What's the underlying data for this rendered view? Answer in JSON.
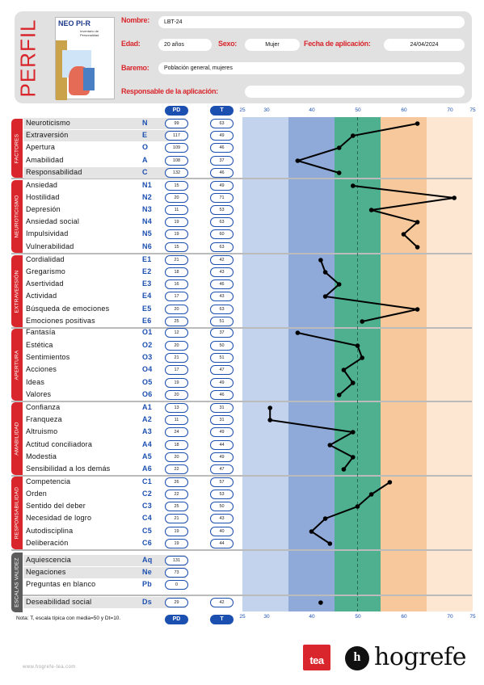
{
  "header": {
    "perfil": "PERFIL",
    "cover_title": "NEO PI-R",
    "cover_subtitle": "Inventario de Personalidad",
    "nombre_label": "Nombre:",
    "nombre_value": "LBT-24",
    "edad_label": "Edad:",
    "edad_value": "20 años",
    "sexo_label": "Sexo:",
    "sexo_value": "Mujer",
    "fecha_label": "Fecha de aplicación:",
    "fecha_value": "24/04/2024",
    "baremo_label": "Baremo:",
    "baremo_value": "Población general, mujeres",
    "responsable_label": "Responsable de la aplicación:",
    "responsable_value": ""
  },
  "col_headers": {
    "pd": "PD",
    "t": "T"
  },
  "axis_ticks": [
    "25",
    "30",
    "40",
    "50",
    "60",
    "70",
    "75"
  ],
  "colors": {
    "red": "#d9262c",
    "blue": "#1b4fb0",
    "band_light_blue": "#c3d3ee",
    "band_blue": "#8fa9d8",
    "band_green": "#4fb08f",
    "band_orange": "#f6c89c",
    "band_light_orange": "#fde7d3"
  },
  "sections": [
    {
      "tab": "FACTORES",
      "rows": [
        {
          "name": "Neuroticismo",
          "code": "N",
          "pd": "99",
          "t": "63"
        },
        {
          "name": "Extraversión",
          "code": "E",
          "pd": "117",
          "t": "49"
        },
        {
          "name": "Apertura",
          "code": "O",
          "pd": "109",
          "t": "46"
        },
        {
          "name": "Amabilidad",
          "code": "A",
          "pd": "108",
          "t": "37"
        },
        {
          "name": "Responsabilidad",
          "code": "C",
          "pd": "132",
          "t": "46"
        }
      ]
    },
    {
      "tab": "NEUROTICISMO",
      "rows": [
        {
          "name": "Ansiedad",
          "code": "N1",
          "pd": "15",
          "t": "49"
        },
        {
          "name": "Hostilidad",
          "code": "N2",
          "pd": "20",
          "t": "71"
        },
        {
          "name": "Depresión",
          "code": "N3",
          "pd": "11",
          "t": "53"
        },
        {
          "name": "Ansiedad social",
          "code": "N4",
          "pd": "19",
          "t": "63"
        },
        {
          "name": "Impulsividad",
          "code": "N5",
          "pd": "19",
          "t": "60"
        },
        {
          "name": "Vulnerabilidad",
          "code": "N6",
          "pd": "15",
          "t": "63"
        }
      ]
    },
    {
      "tab": "EXTRAVERSIÓN",
      "rows": [
        {
          "name": "Cordialidad",
          "code": "E1",
          "pd": "21",
          "t": "42"
        },
        {
          "name": "Gregarismo",
          "code": "E2",
          "pd": "18",
          "t": "43"
        },
        {
          "name": "Asertividad",
          "code": "E3",
          "pd": "16",
          "t": "46"
        },
        {
          "name": "Actividad",
          "code": "E4",
          "pd": "17",
          "t": "43"
        },
        {
          "name": "Búsqueda de emociones",
          "code": "E5",
          "pd": "20",
          "t": "63"
        },
        {
          "name": "Emociones positivas",
          "code": "E6",
          "pd": "25",
          "t": "51"
        }
      ]
    },
    {
      "tab": "APERTURA",
      "rows": [
        {
          "name": "Fantasía",
          "code": "O1",
          "pd": "12",
          "t": "37"
        },
        {
          "name": "Estética",
          "code": "O2",
          "pd": "20",
          "t": "50"
        },
        {
          "name": "Sentimientos",
          "code": "O3",
          "pd": "21",
          "t": "51"
        },
        {
          "name": "Acciones",
          "code": "O4",
          "pd": "17",
          "t": "47"
        },
        {
          "name": "Ideas",
          "code": "O5",
          "pd": "19",
          "t": "49"
        },
        {
          "name": "Valores",
          "code": "O6",
          "pd": "20",
          "t": "46"
        }
      ]
    },
    {
      "tab": "AMABILIDAD",
      "rows": [
        {
          "name": "Confianza",
          "code": "A1",
          "pd": "13",
          "t": "31"
        },
        {
          "name": "Franqueza",
          "code": "A2",
          "pd": "11",
          "t": "31"
        },
        {
          "name": "Altruismo",
          "code": "A3",
          "pd": "24",
          "t": "49"
        },
        {
          "name": "Actitud conciliadora",
          "code": "A4",
          "pd": "18",
          "t": "44"
        },
        {
          "name": "Modestia",
          "code": "A5",
          "pd": "20",
          "t": "49"
        },
        {
          "name": "Sensibilidad a los demás",
          "code": "A6",
          "pd": "22",
          "t": "47"
        }
      ]
    },
    {
      "tab": "RESPONSABILIDAD",
      "rows": [
        {
          "name": "Competencia",
          "code": "C1",
          "pd": "26",
          "t": "57"
        },
        {
          "name": "Orden",
          "code": "C2",
          "pd": "22",
          "t": "53"
        },
        {
          "name": "Sentido del deber",
          "code": "C3",
          "pd": "25",
          "t": "50"
        },
        {
          "name": "Necesidad de logro",
          "code": "C4",
          "pd": "21",
          "t": "43"
        },
        {
          "name": "Autodisciplina",
          "code": "C5",
          "pd": "19",
          "t": "40"
        },
        {
          "name": "Deliberación",
          "code": "C6",
          "pd": "19",
          "t": "44"
        }
      ]
    },
    {
      "tab": "ESCALAS VALIDEZ",
      "rows": [
        {
          "name": "Aquiescencia",
          "code": "Aq",
          "pd": "131",
          "t": ""
        },
        {
          "name": "Negaciones",
          "code": "Ne",
          "pd": "73",
          "t": ""
        },
        {
          "name": "Preguntas en blanco",
          "code": "Pb",
          "pd": "0",
          "t": ""
        }
      ]
    },
    {
      "tab": "",
      "rows": [
        {
          "name": "Deseabilidad social",
          "code": "Ds",
          "pd": "29",
          "t": "42"
        }
      ]
    }
  ],
  "chart_data": {
    "type": "line",
    "xlabel": "T",
    "xlim": [
      25,
      75
    ],
    "x_ticks": [
      25,
      30,
      40,
      50,
      60,
      70,
      75
    ],
    "bands": [
      {
        "from": 25,
        "to": 35
      },
      {
        "from": 35,
        "to": 45
      },
      {
        "from": 45,
        "to": 55
      },
      {
        "from": 55,
        "to": 65
      },
      {
        "from": 65,
        "to": 75
      }
    ],
    "reference_line": 50,
    "series": [
      {
        "values": [
          63,
          49,
          46,
          37,
          46
        ]
      },
      {
        "values": [
          49,
          71,
          53,
          63,
          60,
          63
        ]
      },
      {
        "values": [
          42,
          43,
          46,
          43,
          63,
          51
        ]
      },
      {
        "values": [
          37,
          50,
          51,
          47,
          49,
          46
        ]
      },
      {
        "values": [
          31,
          31,
          49,
          44,
          49,
          47
        ]
      },
      {
        "values": [
          57,
          53,
          50,
          43,
          40,
          44
        ]
      },
      {
        "values": [
          42
        ]
      }
    ]
  },
  "footer": {
    "note": "Nota: T, escala típica con media=50 y Dt=10.",
    "url": "www.hogrefe-tea.com",
    "tea": "tea",
    "hogrefe": "hogrefe",
    "h_mark": "h"
  }
}
